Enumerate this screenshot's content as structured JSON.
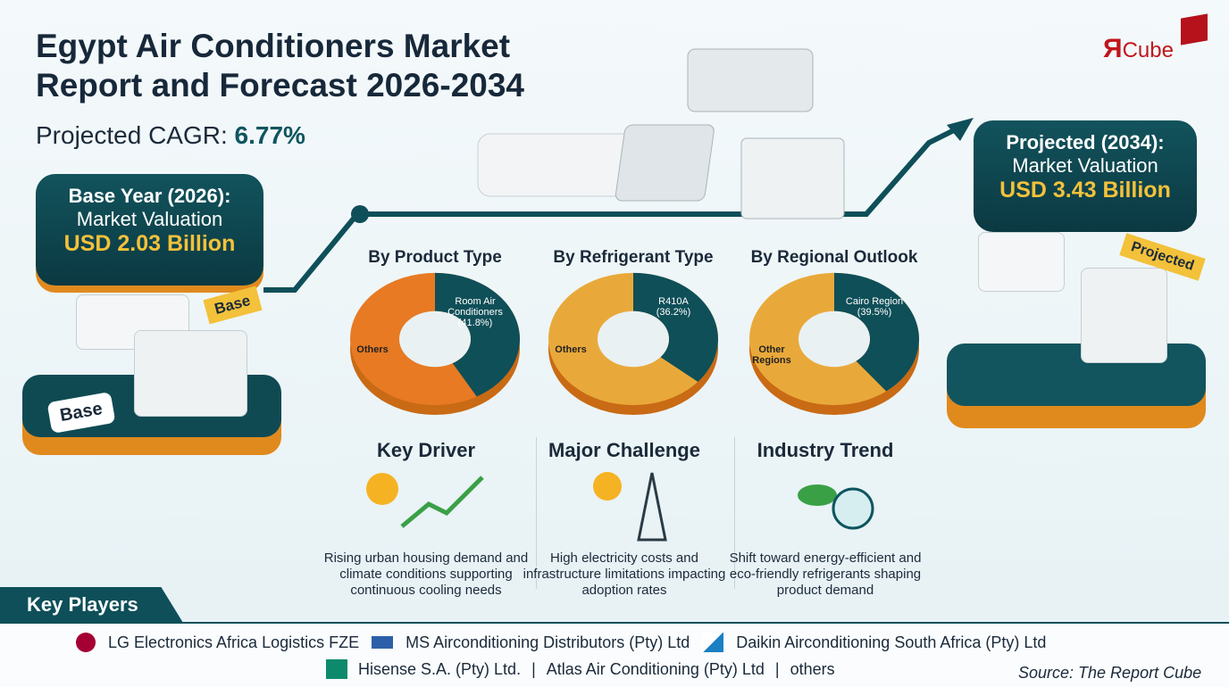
{
  "header": {
    "title_line1": "Egypt Air Conditioners Market",
    "title_line2": "Report and Forecast 2026-2034",
    "cagr_label": "Projected CAGR:",
    "cagr_value": "6.77%"
  },
  "logo": {
    "mark": "Я",
    "text": "Cube"
  },
  "base_card": {
    "title": "Base Year (2026):",
    "subtitle": "Market Valuation",
    "value": "USD 2.03 Billion",
    "tag": "Base",
    "badge": "Base"
  },
  "projected_card": {
    "title": "Projected (2034):",
    "subtitle": "Market Valuation",
    "value": "USD 3.43 Billion",
    "tag": "Projected"
  },
  "segments": [
    {
      "title": "By Product Type",
      "highlight": {
        "name": "Room Air Conditioners",
        "value": 41.8,
        "value_label": "(41.8%)"
      },
      "other_label": "Others"
    },
    {
      "title": "By Refrigerant Type",
      "highlight": {
        "name": "R410A",
        "value": 36.2,
        "value_label": "(36.2%)"
      },
      "other_label": "Others"
    },
    {
      "title": "By Regional Outlook",
      "highlight": {
        "name": "Cairo Region",
        "value": 39.5,
        "value_label": "(39.5%)"
      },
      "other_label": "Other Regions"
    }
  ],
  "insights": [
    {
      "title": "Key Driver",
      "text": "Rising urban housing demand and climate conditions supporting continuous cooling needs"
    },
    {
      "title": "Major Challenge",
      "text": "High electricity costs and infrastructure limitations impacting adoption rates"
    },
    {
      "title": "Industry Trend",
      "text": "Shift toward energy-efficient and eco-friendly refrigerants shaping product demand"
    }
  ],
  "key_players": {
    "title": "Key Players",
    "players": [
      "LG Electronics Africa Logistics FZE",
      "MS Airconditioning Distributors (Pty) Ltd",
      "Daikin Airconditioning South Africa (Pty) Ltd",
      "Hisense S.A. (Pty) Ltd.",
      "Atlas Air Conditioning (Pty) Ltd",
      "others"
    ]
  },
  "source": "Source: The Report Cube"
}
